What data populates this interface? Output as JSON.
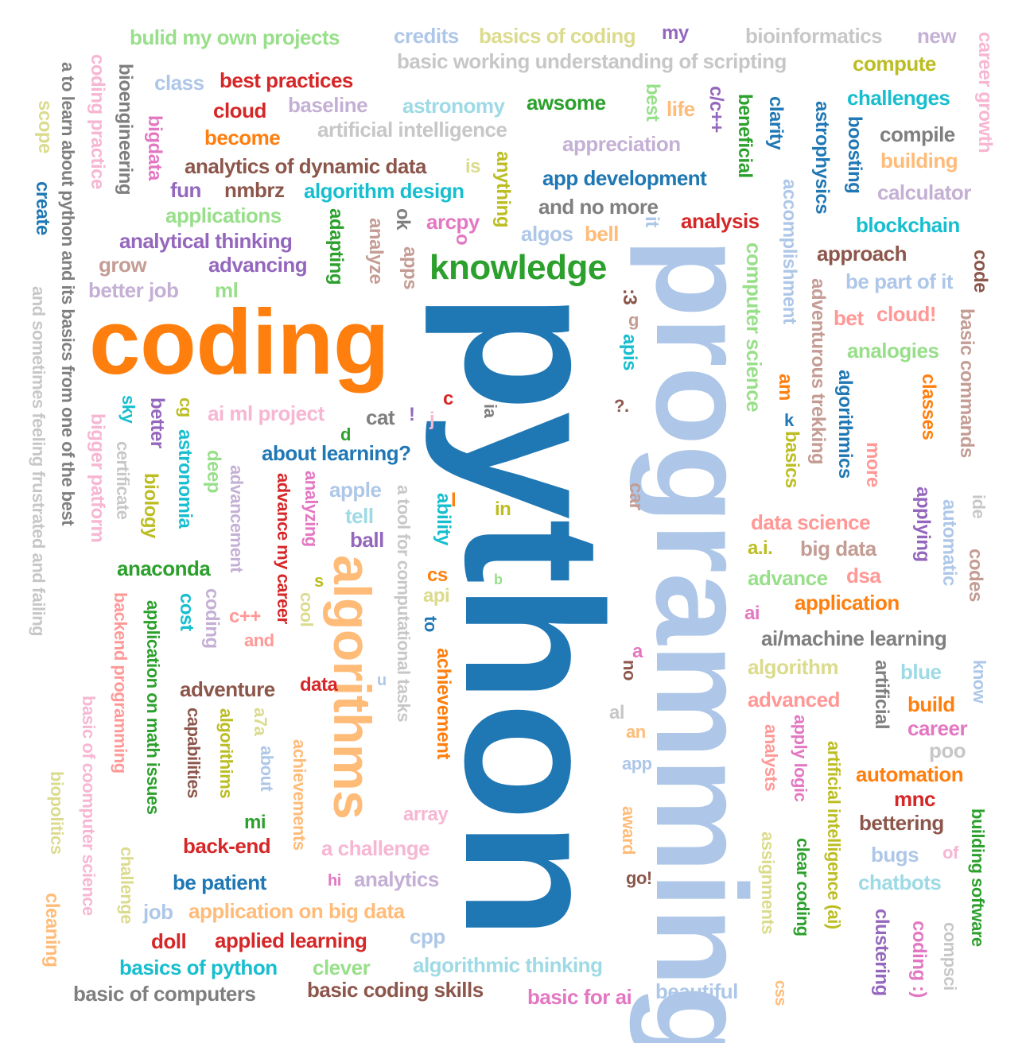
{
  "palette": {
    "blue": "#1f77b4",
    "lightblue": "#aec7e8",
    "orange": "#ff7f0e",
    "lightorange": "#ffbb78",
    "green": "#2ca02c",
    "lightgreen": "#98df8a",
    "red": "#d62728",
    "pink": "#ff9896",
    "purple": "#9467bd",
    "lavender": "#c5b0d5",
    "brown": "#8c564b",
    "tan": "#c49c94",
    "magenta": "#e377c2",
    "lightpink": "#f7b6d2",
    "gray": "#7f7f7f",
    "lightgray": "#c7c7c7",
    "olive": "#bcbd22",
    "khaki": "#dbdb8d",
    "cyan": "#17becf",
    "lightcyan": "#9edae5"
  },
  "words": [
    {
      "text": "python",
      "color": "blue",
      "weight": 100
    },
    {
      "text": "coding",
      "color": "orange",
      "weight": 62
    },
    {
      "text": "programming",
      "color": "lightblue",
      "weight": 70
    },
    {
      "text": "algorithms",
      "color": "lightorange",
      "weight": 38
    },
    {
      "text": "knowledge",
      "color": "green",
      "weight": 26
    },
    {
      "text": "computer science",
      "color": "lightgreen",
      "weight": 18
    },
    {
      "text": "bulid my own projects",
      "color": "lightgreen",
      "weight": 16
    },
    {
      "text": "credits",
      "color": "lightblue",
      "weight": 16
    },
    {
      "text": "basics of coding",
      "color": "khaki",
      "weight": 16
    },
    {
      "text": "my",
      "color": "purple",
      "weight": 16
    },
    {
      "text": "bioinformatics",
      "color": "lightgray",
      "weight": 16
    },
    {
      "text": "new",
      "color": "lavender",
      "weight": 16
    },
    {
      "text": "basic working understanding of scripting",
      "color": "lightgray",
      "weight": 16
    },
    {
      "text": "compute",
      "color": "olive",
      "weight": 16
    },
    {
      "text": "career growth",
      "color": "lightpink",
      "weight": 16
    },
    {
      "text": "a to learn about python and its basics from one of the best",
      "color": "gray",
      "weight": 14
    },
    {
      "text": "coding practice",
      "color": "lightpink",
      "weight": 16
    },
    {
      "text": "bioengineering",
      "color": "gray",
      "weight": 16
    },
    {
      "text": "class",
      "color": "lightblue",
      "weight": 16
    },
    {
      "text": "best practices",
      "color": "red",
      "weight": 16
    },
    {
      "text": "baseline",
      "color": "lavender",
      "weight": 16
    },
    {
      "text": "astronomy",
      "color": "lightcyan",
      "weight": 16
    },
    {
      "text": "awsome",
      "color": "green",
      "weight": 16
    },
    {
      "text": "best",
      "color": "lightgreen",
      "weight": 16
    },
    {
      "text": "life",
      "color": "lightorange",
      "weight": 16
    },
    {
      "text": "c/c++",
      "color": "purple",
      "weight": 16
    },
    {
      "text": "beneficial",
      "color": "green",
      "weight": 16
    },
    {
      "text": "clarity",
      "color": "blue",
      "weight": 16
    },
    {
      "text": "astrophysics",
      "color": "blue",
      "weight": 16
    },
    {
      "text": "boosting",
      "color": "blue",
      "weight": 16
    },
    {
      "text": "challenges",
      "color": "cyan",
      "weight": 16
    },
    {
      "text": "scope",
      "color": "khaki",
      "weight": 16
    },
    {
      "text": "cloud",
      "color": "red",
      "weight": 16
    },
    {
      "text": "bigdata",
      "color": "magenta",
      "weight": 16
    },
    {
      "text": "artificial intelligence",
      "color": "lightgray",
      "weight": 16
    },
    {
      "text": "become",
      "color": "orange",
      "weight": 16
    },
    {
      "text": "appreciation",
      "color": "lavender",
      "weight": 16
    },
    {
      "text": "compile",
      "color": "gray",
      "weight": 16
    },
    {
      "text": "building",
      "color": "lightorange",
      "weight": 16
    },
    {
      "text": "create",
      "color": "blue",
      "weight": 16
    },
    {
      "text": "analytics of dynamic data",
      "color": "brown",
      "weight": 16
    },
    {
      "text": "is",
      "color": "khaki",
      "weight": 16
    },
    {
      "text": "anything",
      "color": "olive",
      "weight": 16
    },
    {
      "text": "app development",
      "color": "blue",
      "weight": 16
    },
    {
      "text": "fun",
      "color": "purple",
      "weight": 16
    },
    {
      "text": "nmbrz",
      "color": "brown",
      "weight": 16
    },
    {
      "text": "algorithm design",
      "color": "cyan",
      "weight": 16
    },
    {
      "text": "calculator",
      "color": "lavender",
      "weight": 16
    },
    {
      "text": "and no more",
      "color": "gray",
      "weight": 16
    },
    {
      "text": "accomplishment",
      "color": "lightblue",
      "weight": 16
    },
    {
      "text": "applications",
      "color": "lightgreen",
      "weight": 16
    },
    {
      "text": "adapting",
      "color": "green",
      "weight": 16
    },
    {
      "text": "ok",
      "color": "gray",
      "weight": 16
    },
    {
      "text": "arcpy",
      "color": "magenta",
      "weight": 16
    },
    {
      "text": "analysis",
      "color": "red",
      "weight": 16
    },
    {
      "text": "blockchain",
      "color": "cyan",
      "weight": 16
    },
    {
      "text": "analytical thinking",
      "color": "purple",
      "weight": 16
    },
    {
      "text": "analyze",
      "color": "tan",
      "weight": 16
    },
    {
      "text": "apps",
      "color": "tan",
      "weight": 16
    },
    {
      "text": "o",
      "color": "magenta",
      "weight": 16
    },
    {
      "text": "algos",
      "color": "lightblue",
      "weight": 16
    },
    {
      "text": "bell",
      "color": "lightorange",
      "weight": 16
    },
    {
      "text": "it",
      "color": "lightblue",
      "weight": 16
    },
    {
      "text": "approach",
      "color": "brown",
      "weight": 16
    },
    {
      "text": "code",
      "color": "brown",
      "weight": 16
    },
    {
      "text": "grow",
      "color": "tan",
      "weight": 16
    },
    {
      "text": "advancing",
      "color": "purple",
      "weight": 16
    },
    {
      "text": "be part of it",
      "color": "lightblue",
      "weight": 16
    },
    {
      "text": "better job",
      "color": "lavender",
      "weight": 16
    },
    {
      "text": "ml",
      "color": "lightgreen",
      "weight": 16
    },
    {
      "text": ":3",
      "color": "brown",
      "weight": 16
    },
    {
      "text": "g",
      "color": "tan",
      "weight": 16
    },
    {
      "text": "adventurous trekking",
      "color": "tan",
      "weight": 16
    },
    {
      "text": "bet",
      "color": "pink",
      "weight": 16
    },
    {
      "text": "cloud!",
      "color": "pink",
      "weight": 16
    },
    {
      "text": "basic commands",
      "color": "tan",
      "weight": 16
    },
    {
      "text": "and sometimes feeling frustrated and failing",
      "color": "lightgray",
      "weight": 14
    },
    {
      "text": "apis",
      "color": "cyan",
      "weight": 16
    },
    {
      "text": "analogies",
      "color": "lightgreen",
      "weight": 16
    },
    {
      "text": "algorithmics",
      "color": "blue",
      "weight": 16
    },
    {
      "text": "classes",
      "color": "orange",
      "weight": 16
    },
    {
      "text": "am",
      "color": "orange",
      "weight": 16
    },
    {
      "text": "c",
      "color": "red",
      "weight": 16
    },
    {
      "text": "?.",
      "color": "brown",
      "weight": 16
    },
    {
      "text": "k",
      "color": "blue",
      "weight": 16
    },
    {
      "text": "basics",
      "color": "olive",
      "weight": 16
    },
    {
      "text": "sky",
      "color": "cyan",
      "weight": 16
    },
    {
      "text": "better",
      "color": "purple",
      "weight": 16
    },
    {
      "text": "cg",
      "color": "olive",
      "weight": 16
    },
    {
      "text": "ai ml project",
      "color": "lightpink",
      "weight": 16
    },
    {
      "text": "cat",
      "color": "gray",
      "weight": 16
    },
    {
      "text": "!",
      "color": "purple",
      "weight": 16
    },
    {
      "text": "j",
      "color": "lightpink",
      "weight": 16
    },
    {
      "text": "ia",
      "color": "gray",
      "weight": 16
    },
    {
      "text": "bigger patform",
      "color": "lightpink",
      "weight": 16
    },
    {
      "text": "certificate",
      "color": "lightgray",
      "weight": 16
    },
    {
      "text": "astronomia",
      "color": "cyan",
      "weight": 16
    },
    {
      "text": "d",
      "color": "green",
      "weight": 16
    },
    {
      "text": "about learning?",
      "color": "blue",
      "weight": 16
    },
    {
      "text": "more",
      "color": "pink",
      "weight": 16
    },
    {
      "text": "deep",
      "color": "lightgreen",
      "weight": 16
    },
    {
      "text": "biology",
      "color": "olive",
      "weight": 16
    },
    {
      "text": "advancement",
      "color": "lavender",
      "weight": 16
    },
    {
      "text": "advance my career",
      "color": "red",
      "weight": 16
    },
    {
      "text": "analyzing",
      "color": "magenta",
      "weight": 16
    },
    {
      "text": "apple",
      "color": "lightblue",
      "weight": 16
    },
    {
      "text": "a tool for computational tasks",
      "color": "lightgray",
      "weight": 16
    },
    {
      "text": "ability",
      "color": "cyan",
      "weight": 16
    },
    {
      "text": "l",
      "color": "orange",
      "weight": 16
    },
    {
      "text": "car",
      "color": "tan",
      "weight": 16
    },
    {
      "text": "applying",
      "color": "purple",
      "weight": 16
    },
    {
      "text": "automatic",
      "color": "lightblue",
      "weight": 16
    },
    {
      "text": "ide",
      "color": "lightgray",
      "weight": 16
    },
    {
      "text": "in",
      "color": "olive",
      "weight": 16
    },
    {
      "text": "tell",
      "color": "lightcyan",
      "weight": 16
    },
    {
      "text": "data science",
      "color": "pink",
      "weight": 16
    },
    {
      "text": "ball",
      "color": "purple",
      "weight": 16
    },
    {
      "text": "a.i.",
      "color": "olive",
      "weight": 16
    },
    {
      "text": "big data",
      "color": "tan",
      "weight": 16
    },
    {
      "text": "codes",
      "color": "tan",
      "weight": 16
    },
    {
      "text": "anaconda",
      "color": "green",
      "weight": 16
    },
    {
      "text": "cs",
      "color": "orange",
      "weight": 16
    },
    {
      "text": "s",
      "color": "olive",
      "weight": 16
    },
    {
      "text": "b",
      "color": "lightgreen",
      "weight": 16
    },
    {
      "text": "advance",
      "color": "lightgreen",
      "weight": 16
    },
    {
      "text": "dsa",
      "color": "pink",
      "weight": 16
    },
    {
      "text": "backend programming",
      "color": "pink",
      "weight": 16
    },
    {
      "text": "cost",
      "color": "cyan",
      "weight": 16
    },
    {
      "text": "coding",
      "color": "lavender",
      "weight": 16
    },
    {
      "text": "c++",
      "color": "pink",
      "weight": 16
    },
    {
      "text": "cool",
      "color": "khaki",
      "weight": 16
    },
    {
      "text": "api",
      "color": "khaki",
      "weight": 16
    },
    {
      "text": "application",
      "color": "orange",
      "weight": 16
    },
    {
      "text": "ai",
      "color": "magenta",
      "weight": 16
    },
    {
      "text": "application on math issues",
      "color": "green",
      "weight": 16
    },
    {
      "text": "and",
      "color": "pink",
      "weight": 16
    },
    {
      "text": "to",
      "color": "blue",
      "weight": 16
    },
    {
      "text": "ai/machine learning",
      "color": "gray",
      "weight": 16
    },
    {
      "text": "achievement",
      "color": "orange",
      "weight": 16
    },
    {
      "text": "a",
      "color": "magenta",
      "weight": 16
    },
    {
      "text": "no",
      "color": "brown",
      "weight": 16
    },
    {
      "text": "know",
      "color": "lightblue",
      "weight": 16
    },
    {
      "text": "algorithm",
      "color": "khaki",
      "weight": 16
    },
    {
      "text": "artificial",
      "color": "gray",
      "weight": 16
    },
    {
      "text": "blue",
      "color": "lightcyan",
      "weight": 16
    },
    {
      "text": "adventure",
      "color": "brown",
      "weight": 16
    },
    {
      "text": "data",
      "color": "red",
      "weight": 16
    },
    {
      "text": "u",
      "color": "lightblue",
      "weight": 16
    },
    {
      "text": "advanced",
      "color": "pink",
      "weight": 16
    },
    {
      "text": "build",
      "color": "orange",
      "weight": 16
    },
    {
      "text": "basic of coomputer science",
      "color": "lightpink",
      "weight": 16
    },
    {
      "text": "capabilities",
      "color": "brown",
      "weight": 16
    },
    {
      "text": "algorithims",
      "color": "olive",
      "weight": 16
    },
    {
      "text": "a7a",
      "color": "khaki",
      "weight": 16
    },
    {
      "text": "about",
      "color": "lightblue",
      "weight": 16
    },
    {
      "text": "al",
      "color": "lightgray",
      "weight": 16
    },
    {
      "text": "career",
      "color": "magenta",
      "weight": 16
    },
    {
      "text": "achievements",
      "color": "lightorange",
      "weight": 16
    },
    {
      "text": "an",
      "color": "lightorange",
      "weight": 16
    },
    {
      "text": "analysts",
      "color": "pink",
      "weight": 16
    },
    {
      "text": "apply logic",
      "color": "magenta",
      "weight": 16
    },
    {
      "text": "artificial intelligence (ai)",
      "color": "olive",
      "weight": 16
    },
    {
      "text": "poo",
      "color": "lightgray",
      "weight": 16
    },
    {
      "text": "app",
      "color": "lightblue",
      "weight": 16
    },
    {
      "text": "automation",
      "color": "orange",
      "weight": 16
    },
    {
      "text": "biopolitics",
      "color": "khaki",
      "weight": 16
    },
    {
      "text": "mnc",
      "color": "red",
      "weight": 16
    },
    {
      "text": "mi",
      "color": "green",
      "weight": 16
    },
    {
      "text": "array",
      "color": "lightpink",
      "weight": 16
    },
    {
      "text": "award",
      "color": "lightorange",
      "weight": 16
    },
    {
      "text": "bettering",
      "color": "brown",
      "weight": 16
    },
    {
      "text": "building software",
      "color": "green",
      "weight": 16
    },
    {
      "text": "back-end",
      "color": "red",
      "weight": 16
    },
    {
      "text": "a challenge",
      "color": "lightpink",
      "weight": 16
    },
    {
      "text": "assignments",
      "color": "khaki",
      "weight": 16
    },
    {
      "text": "clear coding",
      "color": "green",
      "weight": 16
    },
    {
      "text": "bugs",
      "color": "lightblue",
      "weight": 16
    },
    {
      "text": "of",
      "color": "lightpink",
      "weight": 16
    },
    {
      "text": "challenge",
      "color": "khaki",
      "weight": 16
    },
    {
      "text": "be patient",
      "color": "blue",
      "weight": 16
    },
    {
      "text": "hi",
      "color": "magenta",
      "weight": 16
    },
    {
      "text": "analytics",
      "color": "lavender",
      "weight": 16
    },
    {
      "text": "go!",
      "color": "brown",
      "weight": 16
    },
    {
      "text": "chatbots",
      "color": "lightcyan",
      "weight": 16
    },
    {
      "text": "cleaning",
      "color": "lightorange",
      "weight": 16
    },
    {
      "text": "job",
      "color": "lightblue",
      "weight": 16
    },
    {
      "text": "application on big data",
      "color": "lightorange",
      "weight": 16
    },
    {
      "text": "clustering",
      "color": "purple",
      "weight": 16
    },
    {
      "text": "coding :)",
      "color": "magenta",
      "weight": 16
    },
    {
      "text": "compsci",
      "color": "lightgray",
      "weight": 16
    },
    {
      "text": "doll",
      "color": "red",
      "weight": 16
    },
    {
      "text": "applied learning",
      "color": "red",
      "weight": 16
    },
    {
      "text": "cpp",
      "color": "lightblue",
      "weight": 16
    },
    {
      "text": "basics of python",
      "color": "cyan",
      "weight": 16
    },
    {
      "text": "clever",
      "color": "lightgreen",
      "weight": 16
    },
    {
      "text": "algorithmic thinking",
      "color": "lightcyan",
      "weight": 16
    },
    {
      "text": "basic of computers",
      "color": "gray",
      "weight": 16
    },
    {
      "text": "basic coding skills",
      "color": "brown",
      "weight": 16
    },
    {
      "text": "basic for ai",
      "color": "magenta",
      "weight": 16
    },
    {
      "text": "beautiful",
      "color": "lightblue",
      "weight": 16
    },
    {
      "text": "css",
      "color": "lightorange",
      "weight": 16
    }
  ]
}
